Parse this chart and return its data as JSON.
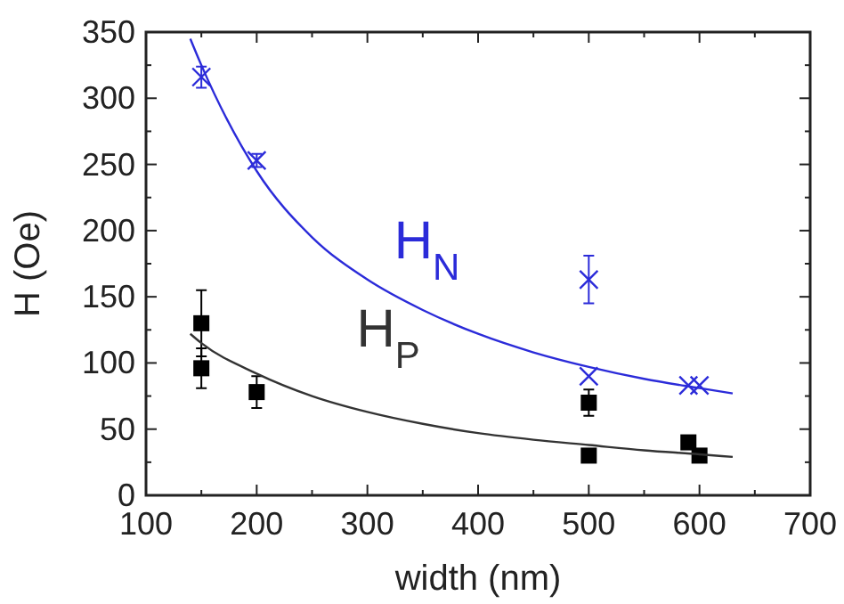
{
  "chart_data": {
    "type": "scatter",
    "xlabel": "width (nm)",
    "ylabel": "H (Oe)",
    "xlim": [
      100,
      700
    ],
    "ylim": [
      0,
      350
    ],
    "xticks": [
      100,
      200,
      300,
      400,
      500,
      600,
      700
    ],
    "yticks": [
      0,
      50,
      100,
      150,
      200,
      250,
      300,
      350
    ],
    "grid": false,
    "series": [
      {
        "marker": "cross",
        "color": "#2b2bd9",
        "x": [
          150,
          200,
          500,
          500,
          590,
          600
        ],
        "values": [
          316,
          253,
          163,
          90,
          83,
          83
        ],
        "errors": [
          8,
          5,
          18,
          null,
          null,
          null
        ]
      },
      {
        "marker": "square",
        "color": "#000000",
        "x": [
          150,
          150,
          200,
          500,
          500,
          590,
          600
        ],
        "values": [
          130,
          96,
          78,
          70,
          30,
          40,
          30
        ],
        "errors": [
          25,
          15,
          12,
          10,
          null,
          null,
          null
        ]
      },
      {
        "type": "line",
        "name": "H$_{N}$",
        "marker": "none",
        "color": "#2b2bd9",
        "x": [
          140,
          150,
          200,
          250,
          300,
          350,
          400,
          450,
          500,
          550,
          600,
          630
        ],
        "values": [
          345,
          325,
          245,
          195,
          163,
          140,
          122,
          108,
          97,
          88,
          81,
          77
        ]
      },
      {
        "type": "line",
        "name": "H$_{P}$",
        "marker": "none",
        "color": "#333333",
        "x": [
          140,
          150,
          200,
          250,
          300,
          350,
          400,
          450,
          500,
          550,
          600,
          630
        ],
        "values": [
          122,
          115,
          92,
          75,
          63,
          54,
          47,
          42,
          38,
          34,
          31,
          29
        ]
      }
    ]
  }
}
